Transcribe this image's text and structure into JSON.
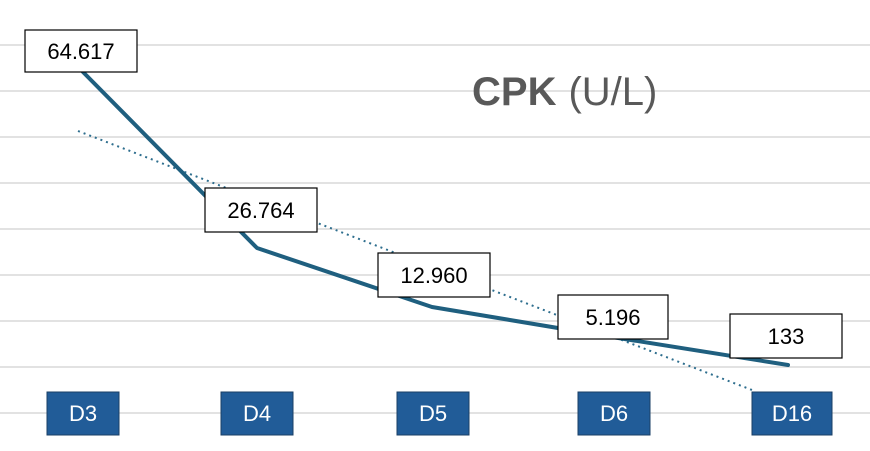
{
  "chart_data": {
    "type": "line",
    "title": "CPK",
    "title_unit": "(U/L)",
    "categories": [
      "D3",
      "D4",
      "D5",
      "D6",
      "D16"
    ],
    "values": [
      64617,
      26764,
      12960,
      5196,
      133
    ],
    "data_labels": [
      "64.617",
      "26.764",
      "12.960",
      "5.196",
      "133"
    ],
    "trendline": {
      "type": "linear",
      "style": "dotted"
    },
    "grid": true,
    "legend": "none",
    "colors": {
      "line": "#1f5f7f",
      "trendline": "#2e6e8e",
      "category_box": "#215c98",
      "category_text": "#ffffff",
      "grid": "#d9d9d9",
      "title": "#595959"
    }
  }
}
